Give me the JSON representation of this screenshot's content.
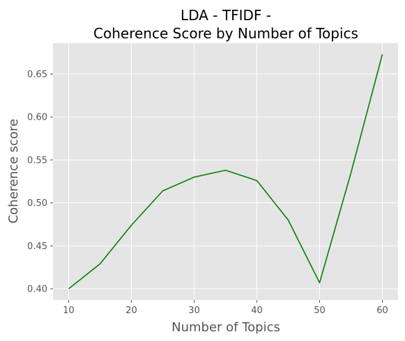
{
  "chart_data": {
    "type": "line",
    "title": "LDA - TFIDF -\nCoherence Score by Number of Topics",
    "title_lines": [
      "LDA - TFIDF -",
      "Coherence Score by Number of Topics"
    ],
    "xlabel": "Number of Topics",
    "ylabel": "Coherence score",
    "x": [
      10,
      15,
      20,
      25,
      30,
      35,
      40,
      45,
      50,
      55,
      60
    ],
    "series": [
      {
        "values": [
          0.4,
          0.429,
          0.474,
          0.514,
          0.53,
          0.538,
          0.526,
          0.48,
          0.407,
          0.535,
          0.673
        ],
        "color": "#008000"
      }
    ],
    "xlim": [
      7.5,
      62.5
    ],
    "ylim": [
      0.387,
      0.686
    ],
    "xticks": [
      10,
      20,
      30,
      40,
      50,
      60
    ],
    "xtick_labels": [
      "10",
      "20",
      "30",
      "40",
      "50",
      "60"
    ],
    "yticks": [
      0.4,
      0.45,
      0.5,
      0.55,
      0.6,
      0.65
    ],
    "ytick_labels": [
      "0.40",
      "0.45",
      "0.50",
      "0.55",
      "0.60",
      "0.65"
    ],
    "grid": true,
    "style": "ggplot",
    "background_color": "#E5E5E5",
    "grid_color": "#FFFFFF"
  }
}
